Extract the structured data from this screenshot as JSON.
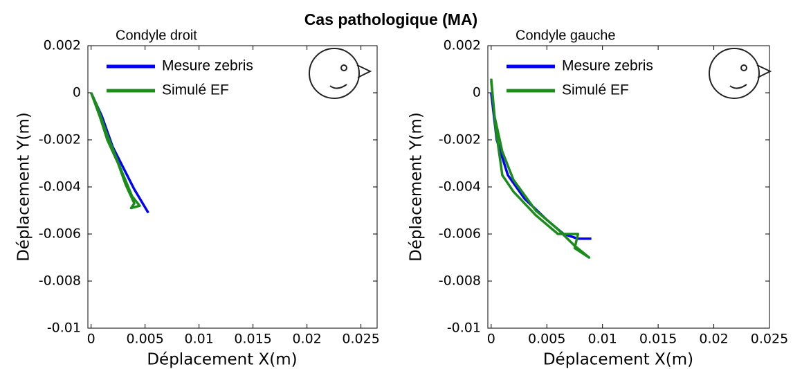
{
  "title": "Cas pathologique (MA)",
  "chart_data": [
    {
      "type": "line",
      "title": "Condyle droit",
      "xlabel": "Déplacement X(m)",
      "ylabel": "Déplacement Y(m)",
      "xlim": [
        -0.0003,
        0.0265
      ],
      "ylim": [
        -0.01,
        0.002
      ],
      "xticks": [
        0,
        0.005,
        0.01,
        0.015,
        0.02,
        0.025
      ],
      "yticks": [
        -0.01,
        -0.008,
        -0.006,
        -0.004,
        -0.002,
        0,
        0.002
      ],
      "legend": "upper left",
      "series": [
        {
          "name": "Mesure zebris",
          "color": "#0000ff",
          "x": [
            0,
            0.001,
            0.002,
            0.003,
            0.004,
            0.0053
          ],
          "values": [
            0,
            -0.001,
            -0.0023,
            -0.0032,
            -0.0041,
            -0.0051
          ]
        },
        {
          "name": "Simulé EF",
          "color": "#1a8c1a",
          "x": [
            0,
            0.0008,
            0.0015,
            0.0025,
            0.0032,
            0.004,
            0.0037,
            0.0045,
            0.0038,
            0.0028,
            0.0015,
            0.0005,
            0
          ],
          "values": [
            0,
            -0.001,
            -0.002,
            -0.003,
            -0.0039,
            -0.0047,
            -0.0049,
            -0.0048,
            -0.0044,
            -0.0033,
            -0.0018,
            -0.0005,
            0
          ]
        }
      ]
    },
    {
      "type": "line",
      "title": "Condyle gauche",
      "xlabel": "Déplacement X(m)",
      "ylabel": "Déplacement Y(m)",
      "xlim": [
        -0.0003,
        0.025
      ],
      "ylim": [
        -0.01,
        0.002
      ],
      "xticks": [
        0,
        0.005,
        0.01,
        0.015,
        0.02,
        0.025
      ],
      "yticks": [
        -0.01,
        -0.008,
        -0.006,
        -0.004,
        -0.002,
        0,
        0.002
      ],
      "legend": "upper left",
      "series": [
        {
          "name": "Mesure zebris",
          "color": "#0000ff",
          "x": [
            0,
            0.0005,
            0.0015,
            0.003,
            0.005,
            0.0065,
            0.0078,
            0.009
          ],
          "values": [
            0,
            -0.002,
            -0.0035,
            -0.0045,
            -0.0054,
            -0.006,
            -0.0062,
            -0.0062
          ]
        },
        {
          "name": "Simulé EF",
          "color": "#1a8c1a",
          "x": [
            0,
            0.0003,
            0.001,
            0.002,
            0.004,
            0.006,
            0.0075,
            0.0088,
            0.0075,
            0.0078,
            0.006,
            0.004,
            0.002,
            0.001,
            0.0004,
            0
          ],
          "values": [
            0.0005,
            -0.001,
            -0.0025,
            -0.0037,
            -0.005,
            -0.0058,
            -0.0065,
            -0.007,
            -0.0066,
            -0.006,
            -0.006,
            -0.0052,
            -0.0042,
            -0.0035,
            -0.0015,
            0.0006
          ]
        }
      ]
    }
  ]
}
